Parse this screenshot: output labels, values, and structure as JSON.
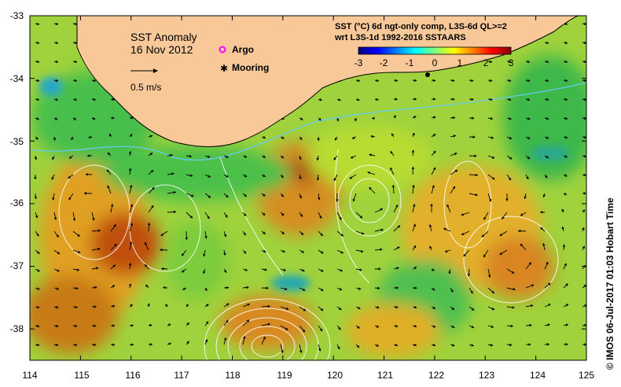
{
  "title": "SST Anomaly",
  "date": "16 Nov 2012",
  "scale_arrow_label": "0.5 m/s",
  "legend": {
    "argo": "Argo",
    "mooring": "Mooring",
    "argo_color": "#ff00ff",
    "mooring_color": "#000000"
  },
  "colorbar": {
    "title_line1": "SST (°C) 6d ngt-only comp, L3S-6d QL>=2",
    "title_line2": "wrt L3S-1d 1992-2016 SSTAARS",
    "ticks": [
      "-3",
      "-2",
      "-1",
      "0",
      "1",
      "2",
      "3"
    ],
    "min": -3,
    "max": 3,
    "colors": [
      "#00007f",
      "#0000ff",
      "#007fff",
      "#00ffff",
      "#7fff7f",
      "#ffff00",
      "#ff7f00",
      "#ff0000",
      "#7f0000"
    ]
  },
  "credit": "© IMOS 06-Jul-2017 01:03 Hobart Time",
  "axes": {
    "x_ticks": [
      "114",
      "115",
      "116",
      "117",
      "118",
      "119",
      "120",
      "121",
      "122",
      "123",
      "124",
      "125"
    ],
    "y_ticks": [
      "-33",
      "-34",
      "-35",
      "-36",
      "-37",
      "-38"
    ],
    "lon_range": [
      114,
      125
    ],
    "lat_range": [
      -38.5,
      -33
    ]
  },
  "colors": {
    "land": "#f8c898",
    "coast": "#000000",
    "contour": "#ffffff",
    "shelf": "#66ccee"
  }
}
